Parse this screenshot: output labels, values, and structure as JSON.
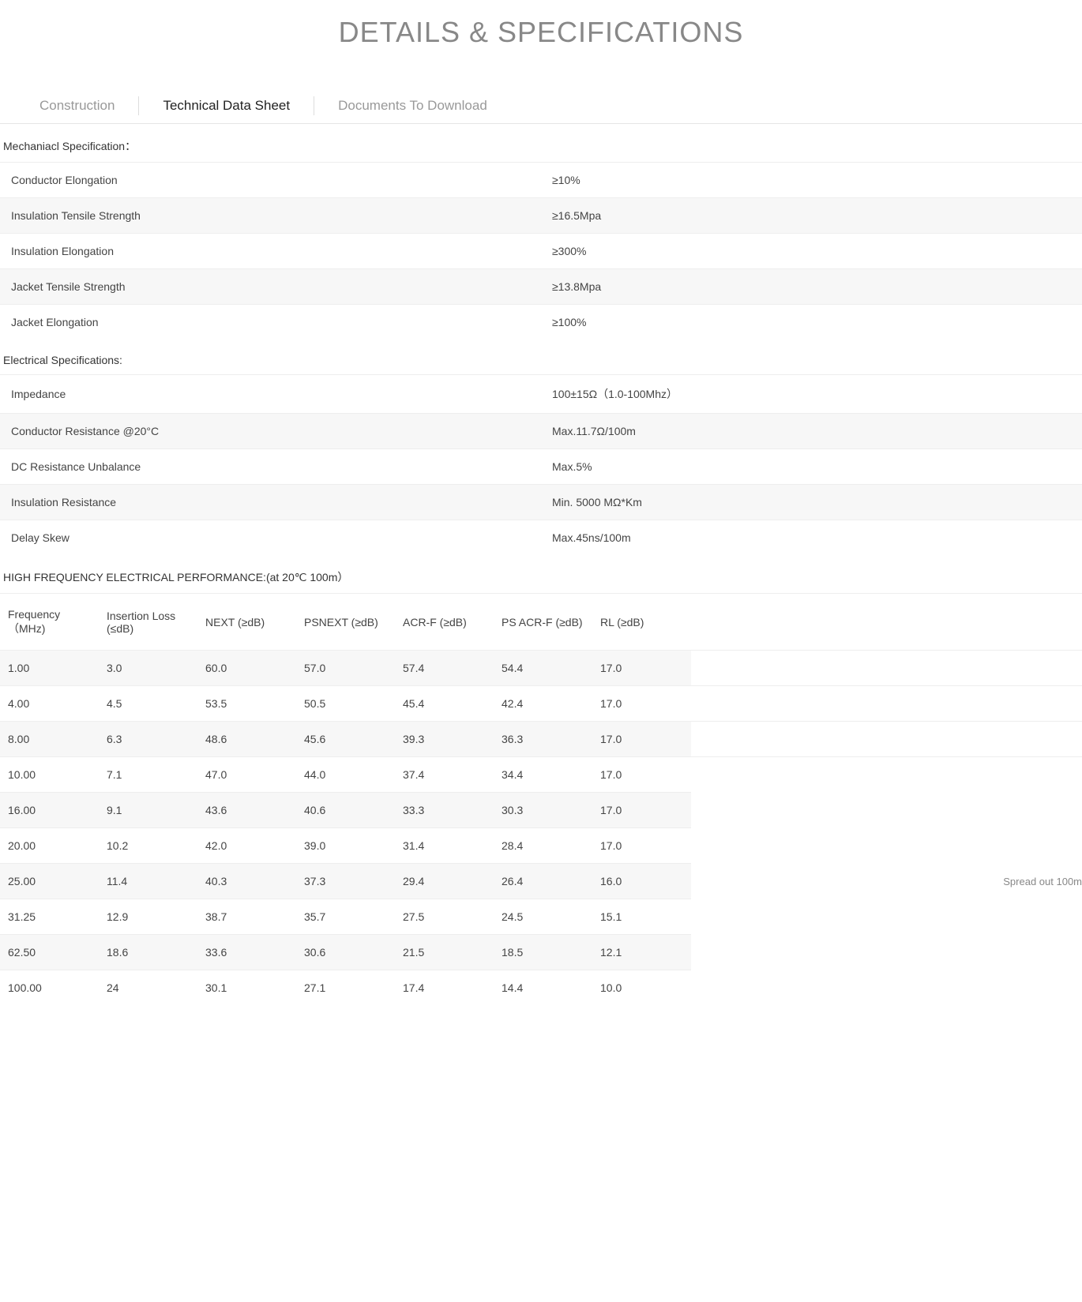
{
  "title": "DETAILS & SPECIFICATIONS",
  "tabs": {
    "construction": "Construction",
    "technical": "Technical Data Sheet",
    "documents": "Documents To Download"
  },
  "sections": {
    "mech_heading": "Mechaniacl Specification：",
    "mech_rows": [
      {
        "k": "Conductor Elongation",
        "v": "≥10%"
      },
      {
        "k": "Insulation Tensile Strength",
        "v": "≥16.5Mpa"
      },
      {
        "k": "Insulation Elongation",
        "v": "≥300%"
      },
      {
        "k": "Jacket Tensile Strength",
        "v": "≥13.8Mpa"
      },
      {
        "k": "Jacket Elongation",
        "v": "≥100%"
      }
    ],
    "elec_heading": "Electrical Specifications:",
    "elec_rows": [
      {
        "k": "Impedance",
        "v": "100±15Ω（1.0-100Mhz）"
      },
      {
        "k": "Conductor Resistance @20°C",
        "v": "Max.11.7Ω/100m"
      },
      {
        "k": "DC Resistance Unbalance",
        "v": "Max.5%"
      },
      {
        "k": "Insulation Resistance",
        "v": "Min. 5000 MΩ*Km"
      },
      {
        "k": "Delay  Skew",
        "v": "Max.45ns/100m"
      }
    ],
    "hf_heading": "HIGH FREQUENCY ELECTRICAL PERFORMANCE:(at 20℃ 100m）"
  },
  "hf_table": {
    "columns": {
      "freq": "Frequency（MHz)",
      "il": "Insertion Loss      (≤dB)",
      "next": "NEXT       (≥dB)",
      "psnext": "PSNEXT       (≥dB)",
      "acrf": "ACR-F     (≥dB)",
      "psacrf": "PS ACR-F (≥dB)",
      "rl": "RL          (≥dB)"
    },
    "rows": [
      {
        "freq": "1.00",
        "il": "3.0",
        "next": "60.0",
        "psnext": "57.0",
        "acrf": "57.4",
        "psacrf": "54.4",
        "rl": "17.0"
      },
      {
        "freq": "4.00",
        "il": "4.5",
        "next": "53.5",
        "psnext": "50.5",
        "acrf": "45.4",
        "psacrf": "42.4",
        "rl": "17.0"
      },
      {
        "freq": "8.00",
        "il": "6.3",
        "next": "48.6",
        "psnext": "45.6",
        "acrf": "39.3",
        "psacrf": "36.3",
        "rl": "17.0"
      },
      {
        "freq": "10.00",
        "il": "7.1",
        "next": "47.0",
        "psnext": "44.0",
        "acrf": "37.4",
        "psacrf": "34.4",
        "rl": "17.0"
      },
      {
        "freq": "16.00",
        "il": "9.1",
        "next": "43.6",
        "psnext": "40.6",
        "acrf": "33.3",
        "psacrf": "30.3",
        "rl": "17.0"
      },
      {
        "freq": "20.00",
        "il": "10.2",
        "next": "42.0",
        "psnext": "39.0",
        "acrf": "31.4",
        "psacrf": "28.4",
        "rl": "17.0"
      },
      {
        "freq": "25.00",
        "il": "11.4",
        "next": "40.3",
        "psnext": "37.3",
        "acrf": "29.4",
        "psacrf": "26.4",
        "rl": "16.0"
      },
      {
        "freq": "31.25",
        "il": "12.9",
        "next": "38.7",
        "psnext": "35.7",
        "acrf": "27.5",
        "psacrf": "24.5",
        "rl": "15.1"
      },
      {
        "freq": "62.50",
        "il": "18.6",
        "next": "33.6",
        "psnext": "30.6",
        "acrf": "21.5",
        "psacrf": "18.5",
        "rl": "12.1"
      },
      {
        "freq": "100.00",
        "il": "24",
        "next": "30.1",
        "psnext": "27.1",
        "acrf": "17.4",
        "psacrf": "14.4",
        "rl": "10.0"
      }
    ],
    "side_note": "Spread out 100m"
  },
  "style": {
    "title_color": "#888888",
    "tab_inactive_color": "#999999",
    "tab_active_color": "#222222",
    "row_alt_bg": "#f7f7f7",
    "border_color": "#eeeeee",
    "text_color": "#444444"
  }
}
